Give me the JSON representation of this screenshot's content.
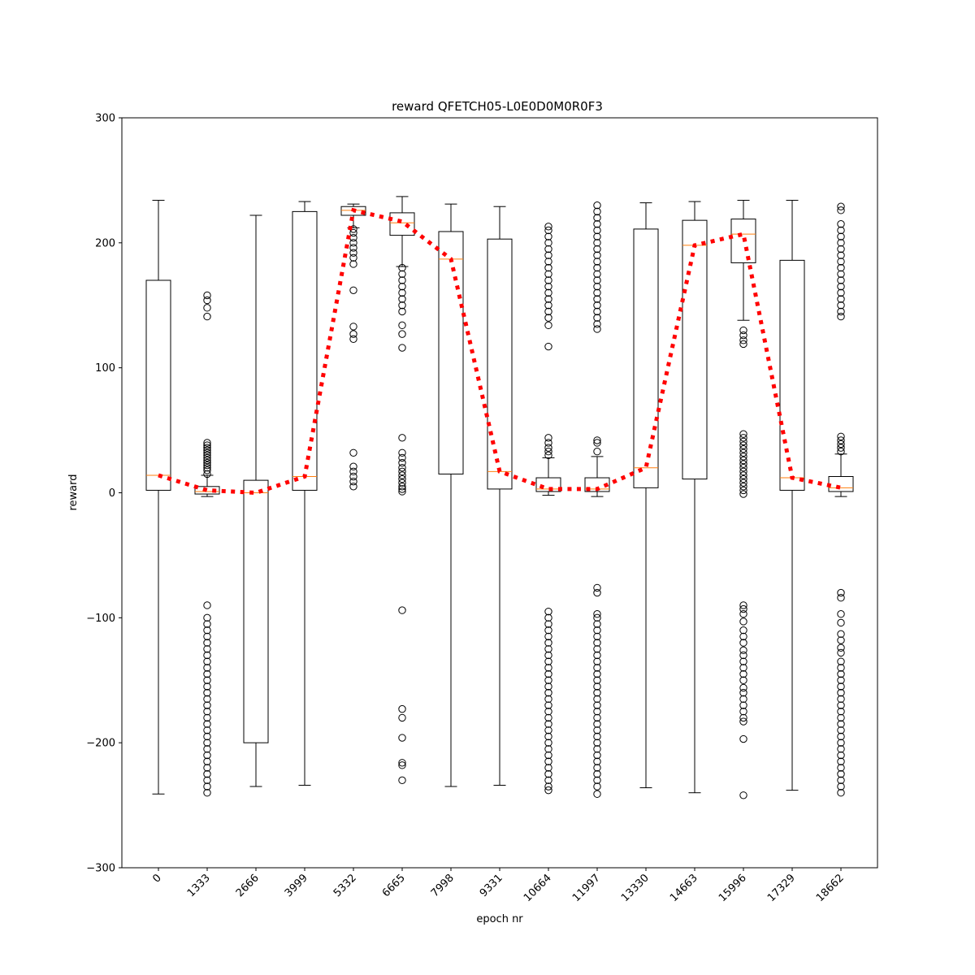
{
  "chart_data": {
    "type": "box",
    "title": "reward QFETCH05-L0E0D0M0R0F3",
    "xlabel": "epoch nr",
    "ylabel": "reward",
    "ylim": [
      -300,
      300
    ],
    "yticks": [
      -300,
      -200,
      -100,
      0,
      100,
      200,
      300
    ],
    "ytick_labels": [
      "−300",
      "−200",
      "−100",
      "0",
      "100",
      "200",
      "300"
    ],
    "categories": [
      "0",
      "1333",
      "2666",
      "3999",
      "5332",
      "6665",
      "7998",
      "9331",
      "10664",
      "11997",
      "13330",
      "14663",
      "15996",
      "17329",
      "18662"
    ],
    "boxes": [
      {
        "category": "0",
        "whislo": -241,
        "q1": 2,
        "med": 14,
        "q3": 170,
        "whishi": 234,
        "fliers": []
      },
      {
        "category": "1333",
        "whislo": -3,
        "q1": -1,
        "med": 1,
        "q3": 5,
        "whishi": 14,
        "fliers": [
          141,
          148,
          154,
          158,
          15,
          18,
          20,
          22,
          24,
          26,
          28,
          30,
          32,
          34,
          36,
          38,
          40,
          -90,
          -100,
          -105,
          -110,
          -115,
          -120,
          -125,
          -130,
          -135,
          -140,
          -145,
          -150,
          -155,
          -160,
          -165,
          -170,
          -175,
          -180,
          -185,
          -190,
          -195,
          -200,
          -205,
          -210,
          -215,
          -220,
          -225,
          -230,
          -235,
          -240
        ]
      },
      {
        "category": "2666",
        "whislo": -235,
        "q1": -200,
        "med": 0,
        "q3": 10,
        "whishi": 222,
        "fliers": []
      },
      {
        "category": "3999",
        "whislo": -234,
        "q1": 2,
        "med": 13,
        "q3": 225,
        "whishi": 233,
        "fliers": []
      },
      {
        "category": "5332",
        "whislo": 212,
        "q1": 222,
        "med": 226,
        "q3": 229,
        "whishi": 231,
        "fliers": [
          5,
          9,
          13,
          17,
          21,
          32,
          123,
          127,
          133,
          162,
          183,
          188,
          192,
          196,
          200,
          204,
          208,
          211
        ]
      },
      {
        "category": "6665",
        "whislo": 181,
        "q1": 206,
        "med": 216,
        "q3": 224,
        "whishi": 237,
        "fliers": [
          1,
          3,
          5,
          8,
          11,
          14,
          17,
          20,
          24,
          28,
          32,
          44,
          116,
          127,
          134,
          145,
          150,
          155,
          160,
          165,
          170,
          175,
          180,
          -94,
          -173,
          -180,
          -196,
          -216,
          -218,
          -230
        ]
      },
      {
        "category": "7998",
        "whislo": -235,
        "q1": 15,
        "med": 187,
        "q3": 209,
        "whishi": 231,
        "fliers": []
      },
      {
        "category": "9331",
        "whislo": -234,
        "q1": 3,
        "med": 17,
        "q3": 203,
        "whishi": 229,
        "fliers": []
      },
      {
        "category": "10664",
        "whislo": -2,
        "q1": 1,
        "med": 3,
        "q3": 12,
        "whishi": 28,
        "fliers": [
          30,
          33,
          36,
          40,
          44,
          117,
          134,
          140,
          145,
          150,
          155,
          160,
          165,
          170,
          175,
          180,
          185,
          190,
          195,
          200,
          205,
          210,
          213,
          -95,
          -100,
          -105,
          -110,
          -115,
          -120,
          -125,
          -130,
          -135,
          -140,
          -145,
          -150,
          -155,
          -160,
          -165,
          -170,
          -175,
          -180,
          -185,
          -190,
          -195,
          -200,
          -205,
          -210,
          -215,
          -220,
          -225,
          -230,
          -235,
          -238
        ]
      },
      {
        "category": "11997",
        "whislo": -3,
        "q1": 1,
        "med": 3,
        "q3": 12,
        "whishi": 29,
        "fliers": [
          33,
          40,
          42,
          131,
          135,
          140,
          145,
          150,
          155,
          160,
          165,
          170,
          175,
          180,
          185,
          190,
          195,
          200,
          205,
          210,
          215,
          220,
          225,
          230,
          -76,
          -80,
          -97,
          -100,
          -105,
          -110,
          -115,
          -120,
          -125,
          -130,
          -135,
          -140,
          -145,
          -150,
          -155,
          -160,
          -165,
          -170,
          -175,
          -180,
          -185,
          -190,
          -195,
          -200,
          -205,
          -210,
          -215,
          -220,
          -225,
          -230,
          -235,
          -241
        ]
      },
      {
        "category": "13330",
        "whislo": -236,
        "q1": 4,
        "med": 20,
        "q3": 211,
        "whishi": 232,
        "fliers": []
      },
      {
        "category": "14663",
        "whislo": -240,
        "q1": 11,
        "med": 198,
        "q3": 218,
        "whishi": 233,
        "fliers": []
      },
      {
        "category": "15996",
        "whislo": 138,
        "q1": 184,
        "med": 207,
        "q3": 219,
        "whishi": 234,
        "fliers": [
          -1,
          2,
          5,
          8,
          11,
          14,
          17,
          20,
          23,
          26,
          29,
          32,
          35,
          38,
          41,
          44,
          47,
          119,
          122,
          126,
          130,
          -90,
          -93,
          -97,
          -103,
          -110,
          -115,
          -120,
          -126,
          -130,
          -135,
          -140,
          -145,
          -150,
          -156,
          -160,
          -165,
          -170,
          -175,
          -180,
          -183,
          -197,
          -242
        ]
      },
      {
        "category": "17329",
        "whislo": -238,
        "q1": 2,
        "med": 12,
        "q3": 186,
        "whishi": 234,
        "fliers": []
      },
      {
        "category": "18662",
        "whislo": -3,
        "q1": 1,
        "med": 4,
        "q3": 13,
        "whishi": 31,
        "fliers": [
          33,
          36,
          39,
          42,
          45,
          141,
          145,
          150,
          155,
          160,
          165,
          170,
          175,
          180,
          185,
          190,
          195,
          200,
          205,
          210,
          215,
          226,
          229,
          -80,
          -84,
          -97,
          -104,
          -113,
          -118,
          -124,
          -128,
          -135,
          -140,
          -145,
          -150,
          -155,
          -160,
          -165,
          -170,
          -175,
          -180,
          -185,
          -190,
          -195,
          -200,
          -205,
          -210,
          -215,
          -220,
          -225,
          -230,
          -235,
          -240
        ]
      }
    ],
    "mean_line": {
      "color": "#ff0000",
      "style": "dotted",
      "values": [
        14,
        2,
        0,
        13,
        226,
        217,
        187,
        17,
        3,
        3,
        20,
        198,
        207,
        12,
        4
      ]
    },
    "colors": {
      "box": "#000000",
      "median": "#ff7f0e",
      "mean_line": "#ff0000",
      "flier": "#000000"
    },
    "grid": false
  }
}
